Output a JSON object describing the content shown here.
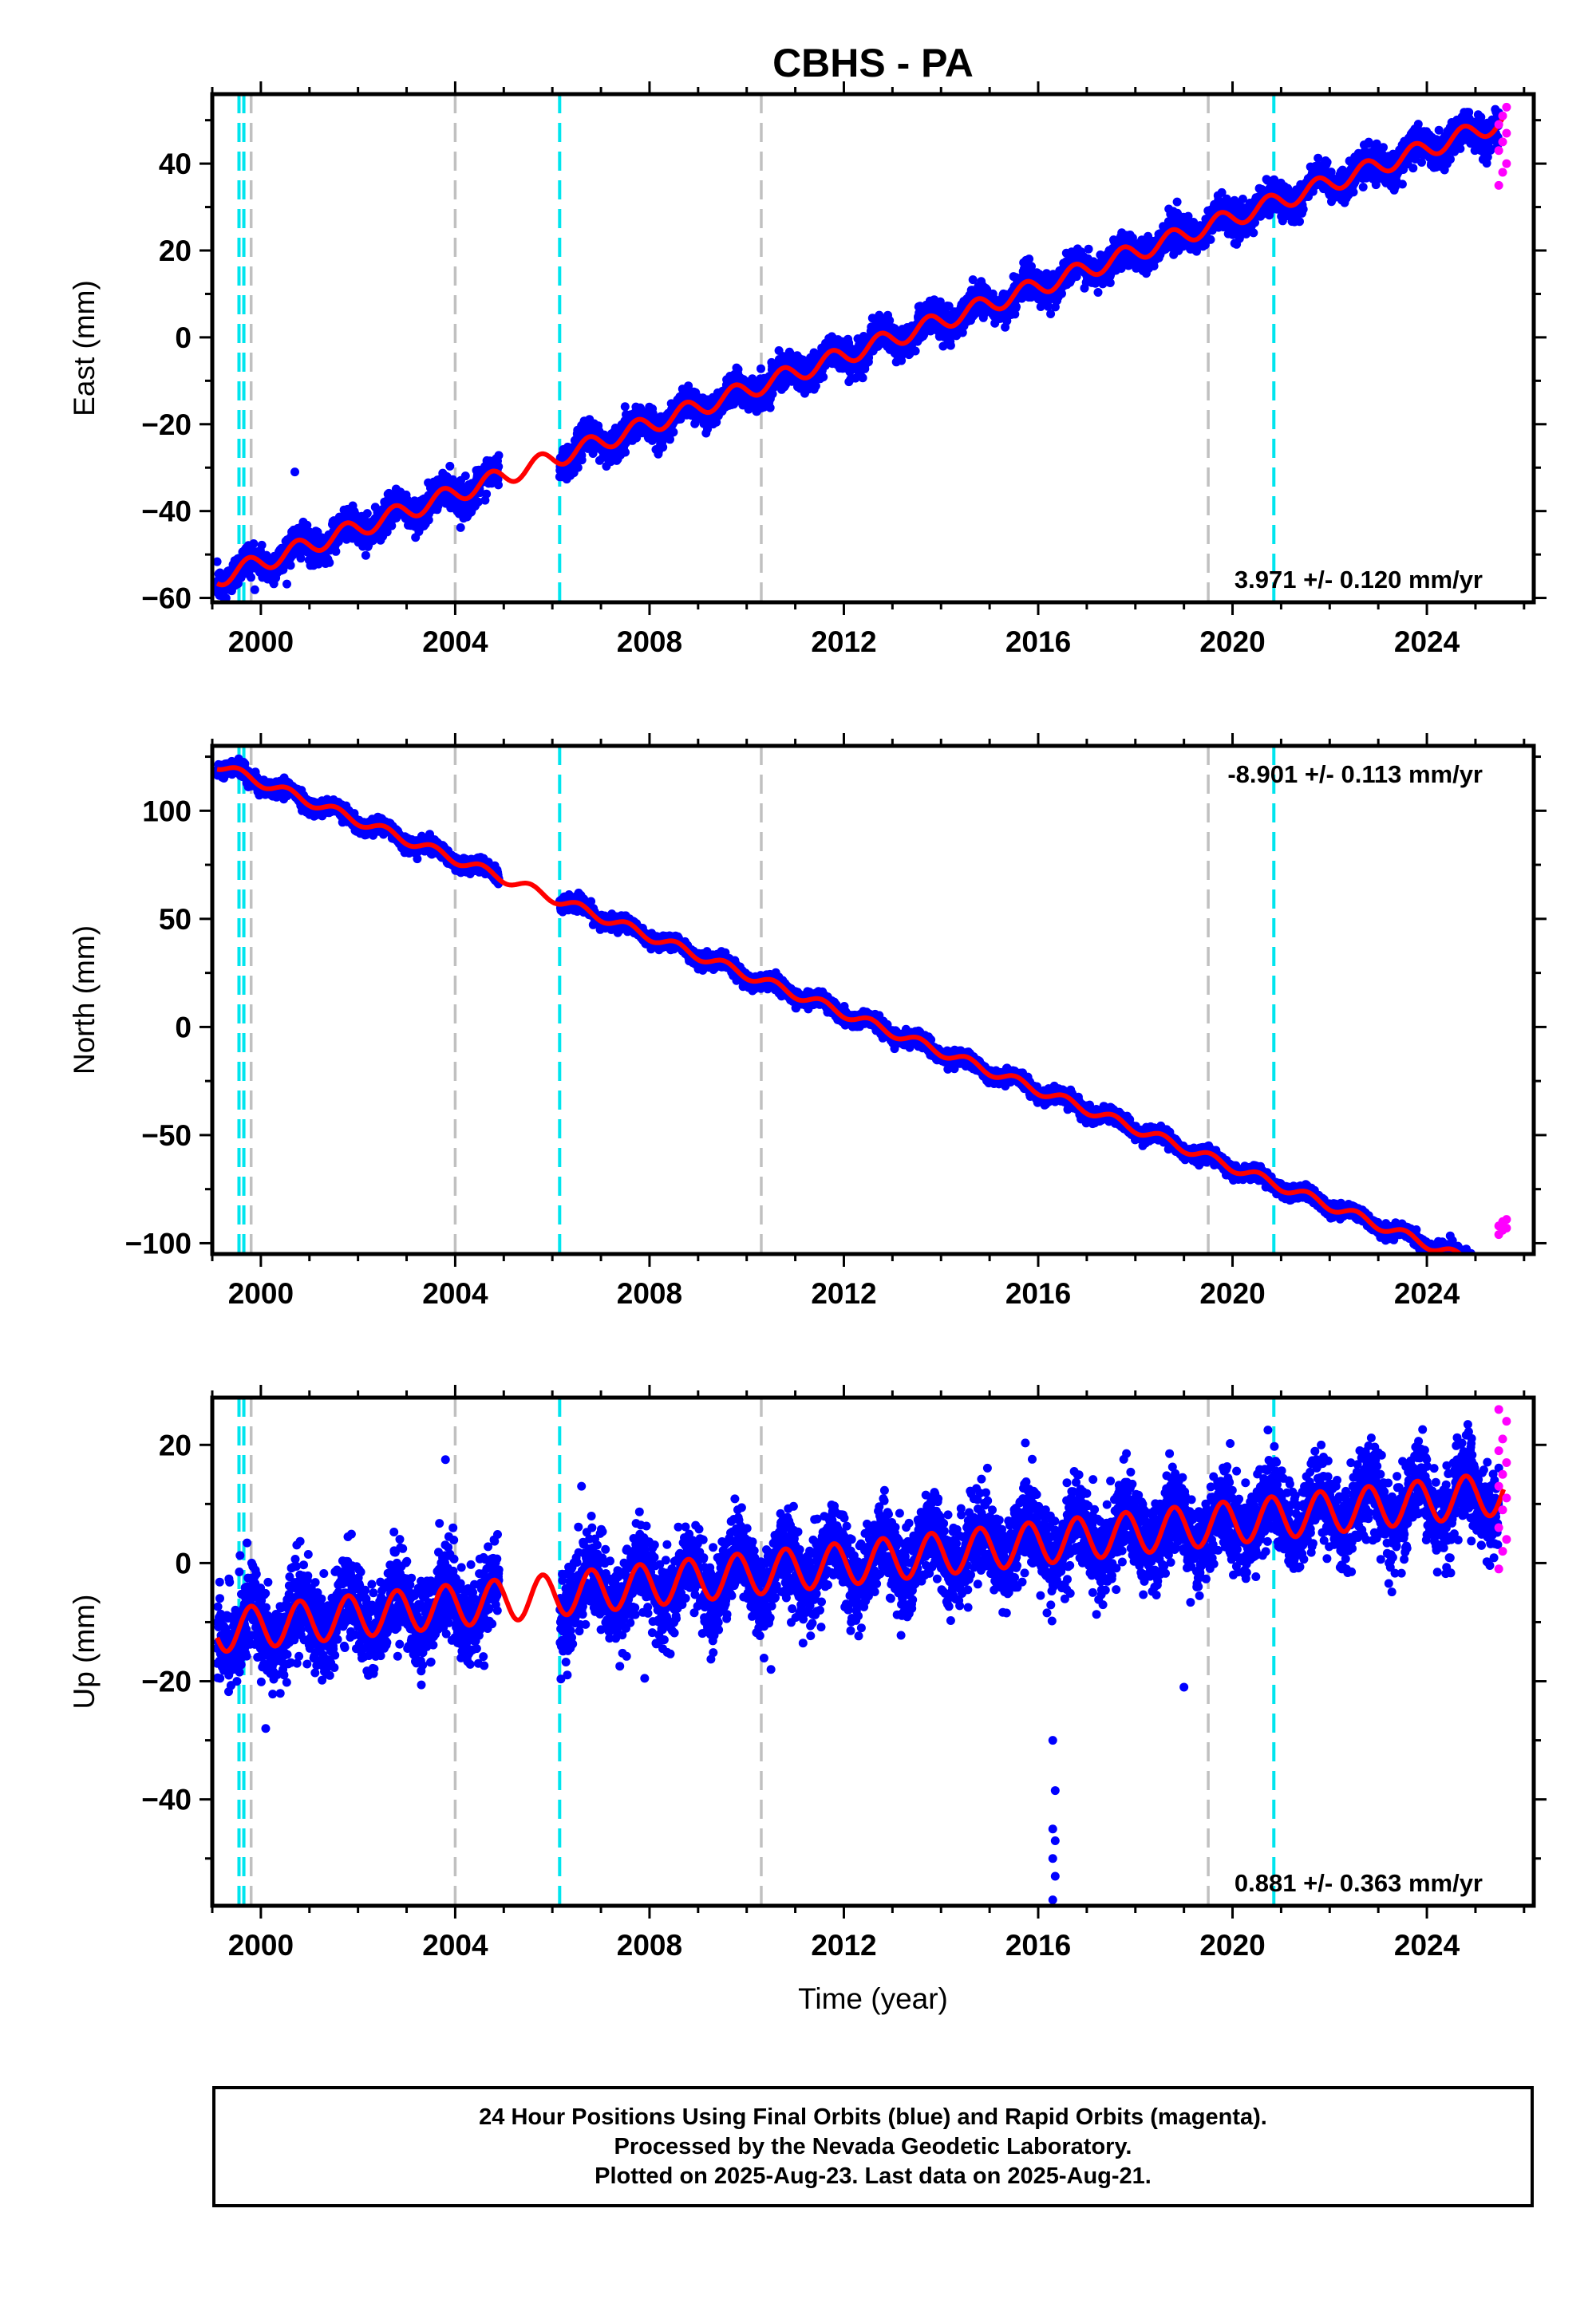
{
  "title": "CBHS - PA",
  "xlabel": "Time (year)",
  "footer": {
    "line1": "24 Hour Positions Using Final Orbits (blue) and Rapid Orbits (magenta).",
    "line2": "Processed by the Nevada Geodetic Laboratory.",
    "line3": "Plotted on 2025-Aug-23. Last data on 2025-Aug-21."
  },
  "colors": {
    "final": "#0000ff",
    "rapid": "#ff00ff",
    "model": "#ff0000",
    "equipment_change": "#00e5ee",
    "earthquake": "#c0c0c0"
  },
  "chart_data": [
    {
      "type": "scatter",
      "component": "east",
      "ylabel": "East (mm)",
      "xlim": [
        1999.0,
        2026.2
      ],
      "ylim": [
        -61,
        56
      ],
      "xticks": [
        2000,
        2004,
        2008,
        2012,
        2016,
        2020,
        2024
      ],
      "yticks": [
        -60,
        -40,
        -20,
        0,
        20,
        40
      ],
      "rate_label": "3.971 +/- 0.120 mm/yr",
      "rate_position": "bottom-right",
      "cyan_lines": [
        1999.55,
        1999.65,
        2006.15,
        2020.85
      ],
      "gray_lines": [
        1999.8,
        2004.0,
        2010.3,
        2019.5
      ],
      "model": {
        "slope": 3.971,
        "t0": 2012.5,
        "intercept": -2.2,
        "annual_amp": 2.1,
        "phase": 0.5
      },
      "noise_sd": 1.8,
      "data_gap": [
        2004.9,
        2006.15
      ],
      "series": [
        {
          "name": "Final Orbits (blue)",
          "t_range": [
            1999.1,
            2025.48
          ]
        },
        {
          "name": "Rapid Orbits (magenta)",
          "t_range": [
            2025.48,
            2025.64
          ],
          "values": [
            35,
            38,
            40,
            43,
            45,
            47,
            49,
            51,
            53
          ]
        }
      ],
      "outliers": [
        [
          2000.7,
          -31
        ],
        [
          1999.4,
          -56
        ]
      ]
    },
    {
      "type": "scatter",
      "component": "north",
      "ylabel": "North (mm)",
      "xlim": [
        1999.0,
        2026.2
      ],
      "ylim": [
        -105,
        130
      ],
      "xticks": [
        2000,
        2004,
        2008,
        2012,
        2016,
        2020,
        2024
      ],
      "yticks": [
        -100,
        -50,
        0,
        50,
        100
      ],
      "rate_label": "-8.901 +/- 0.113 mm/yr",
      "rate_position": "top-right",
      "cyan_lines": [
        1999.55,
        1999.65,
        2006.15,
        2020.85
      ],
      "gray_lines": [
        1999.8,
        2004.0,
        2010.3,
        2019.5
      ],
      "model": {
        "slope": -8.901,
        "t0": 2012.5,
        "intercept": 2.0,
        "annual_amp": 2.2,
        "phase": 0.3
      },
      "noise_sd": 1.6,
      "data_gap": [
        2004.9,
        2006.15
      ],
      "series": [
        {
          "name": "Final Orbits (blue)",
          "t_range": [
            1999.1,
            2025.48
          ]
        },
        {
          "name": "Rapid Orbits (magenta)",
          "t_range": [
            2025.48,
            2025.64
          ],
          "values": [
            -96,
            -94,
            -93,
            -92,
            -90,
            -89
          ]
        }
      ],
      "outliers": []
    },
    {
      "type": "scatter",
      "component": "up",
      "ylabel": "Up (mm)",
      "xlim": [
        1999.0,
        2026.2
      ],
      "ylim": [
        -58,
        28
      ],
      "xticks": [
        2000,
        2004,
        2008,
        2012,
        2016,
        2020,
        2024
      ],
      "yticks": [
        -40,
        -20,
        0,
        20
      ],
      "rate_label": "0.881 +/- 0.363 mm/yr",
      "rate_position": "bottom-right",
      "cyan_lines": [
        1999.55,
        1999.65,
        2006.15,
        2020.85
      ],
      "gray_lines": [
        1999.8,
        2004.0,
        2010.3,
        2019.5
      ],
      "model": {
        "slope": 0.881,
        "t0": 2012.5,
        "intercept": 0.3,
        "annual_amp": 3.6,
        "phase": 0.55
      },
      "noise_sd": 3.6,
      "data_gap": [
        2004.9,
        2006.15
      ],
      "series": [
        {
          "name": "Final Orbits (blue)",
          "t_range": [
            1999.1,
            2025.48
          ]
        },
        {
          "name": "Rapid Orbits (magenta)",
          "t_range": [
            2025.48,
            2025.64
          ],
          "values": [
            -1,
            2,
            4,
            6,
            9,
            11,
            13,
            15,
            17,
            19,
            21,
            24,
            26
          ]
        }
      ],
      "outliers": [
        [
          2016.3,
          -30
        ],
        [
          2016.35,
          -38.5
        ],
        [
          2016.3,
          -45
        ],
        [
          2016.35,
          -47
        ],
        [
          2016.3,
          -50
        ],
        [
          2016.35,
          -53
        ],
        [
          2016.3,
          -57
        ],
        [
          2000.1,
          -28
        ],
        [
          2019.0,
          -21
        ],
        [
          2007.9,
          -19.5
        ],
        [
          2010.5,
          -18
        ],
        [
          2006.6,
          13
        ],
        [
          2003.8,
          17.5
        ]
      ]
    }
  ]
}
